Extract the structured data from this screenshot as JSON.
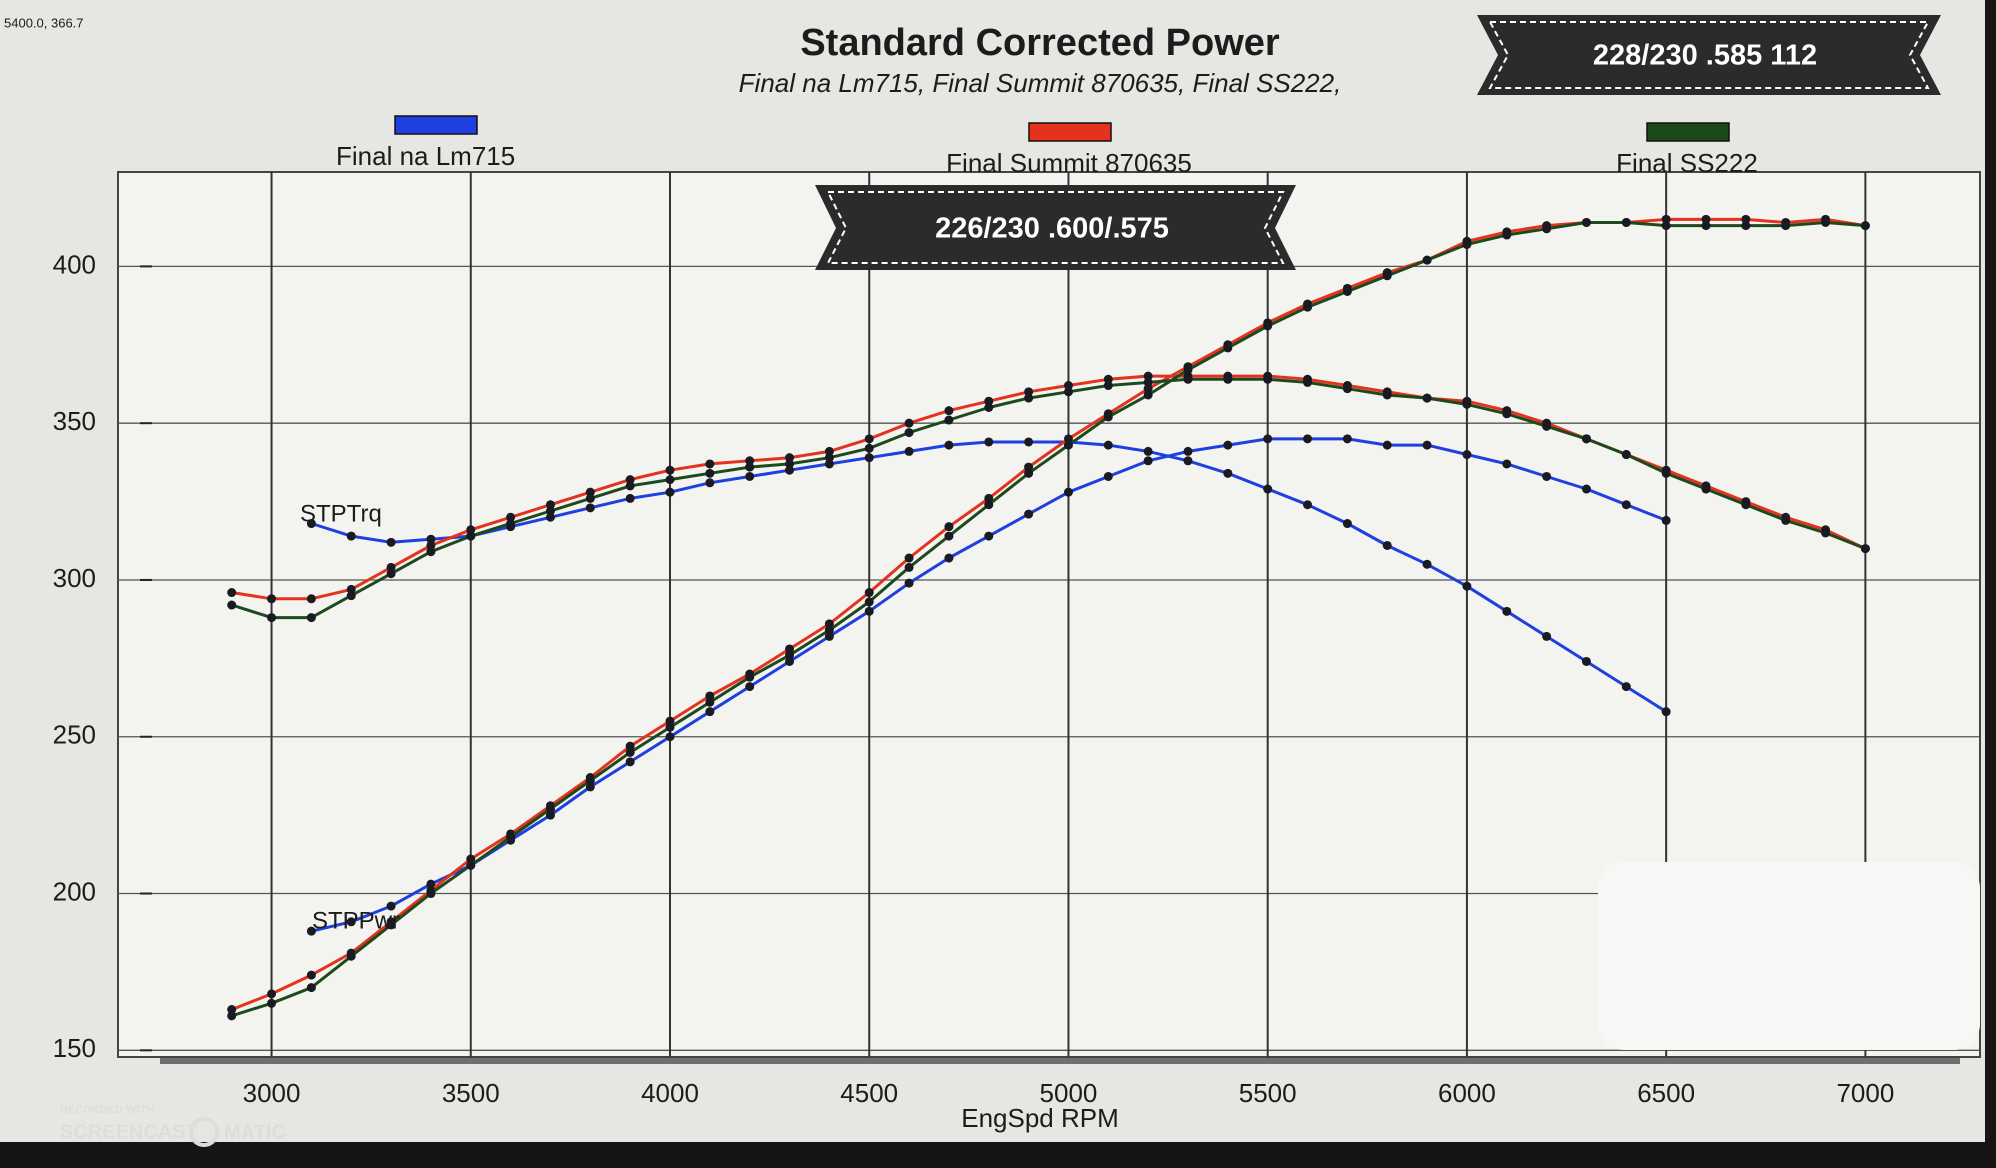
{
  "chart_data": {
    "type": "line",
    "title": "Standard Corrected Power",
    "subtitle": "Final na Lm715, Final Summit 870635, Final SS222,",
    "x_label": "EngSpd RPM",
    "cursor_readout": "5400.0, 366.7",
    "banners": [
      "228/230 .585 112",
      "226/230 .600/.575"
    ],
    "annotations": [
      "STPTrq",
      "STPPwr"
    ],
    "watermark": [
      "RECORDED WITH",
      "SCREENCAST",
      "MATIC"
    ],
    "xlim": [
      2700,
      7250
    ],
    "xticks": [
      3000,
      3500,
      4000,
      4500,
      5000,
      5500,
      6000,
      6500,
      7000
    ],
    "ylim": [
      145,
      425
    ],
    "yticks": [
      150,
      200,
      250,
      300,
      350,
      400
    ],
    "grid": true,
    "x": [
      2900,
      3000,
      3100,
      3200,
      3300,
      3400,
      3500,
      3600,
      3700,
      3800,
      3900,
      4000,
      4100,
      4200,
      4300,
      4400,
      4500,
      4600,
      4700,
      4800,
      4900,
      5000,
      5100,
      5200,
      5300,
      5400,
      5500,
      5600,
      5700,
      5800,
      5900,
      6000,
      6100,
      6200,
      6300,
      6400,
      6500,
      6600,
      6700,
      6800,
      6900,
      7000
    ],
    "series": [
      {
        "name": "Final na Lm715",
        "color": "#1f3fe0",
        "torque": [
          null,
          null,
          318,
          314,
          312,
          313,
          314,
          317,
          320,
          323,
          326,
          328,
          331,
          333,
          335,
          337,
          339,
          341,
          343,
          344,
          344,
          344,
          343,
          341,
          338,
          334,
          329,
          324,
          318,
          311,
          305,
          298,
          290,
          282,
          274,
          266,
          258,
          null,
          null,
          null,
          null,
          null
        ],
        "power": [
          null,
          null,
          188,
          191,
          196,
          203,
          209,
          217,
          225,
          234,
          242,
          250,
          258,
          266,
          274,
          282,
          290,
          299,
          307,
          314,
          321,
          328,
          333,
          338,
          341,
          343,
          345,
          345,
          345,
          343,
          343,
          340,
          337,
          333,
          329,
          324,
          319,
          null,
          null,
          null,
          null,
          null
        ]
      },
      {
        "name": "Final Summit 870635",
        "color": "#e5321e",
        "torque": [
          296,
          294,
          294,
          297,
          304,
          311,
          316,
          320,
          324,
          328,
          332,
          335,
          337,
          338,
          339,
          341,
          345,
          350,
          354,
          357,
          360,
          362,
          364,
          365,
          365,
          365,
          365,
          364,
          362,
          360,
          358,
          357,
          354,
          350,
          345,
          340,
          335,
          330,
          325,
          320,
          316,
          310
        ],
        "power": [
          163,
          168,
          174,
          181,
          191,
          201,
          211,
          219,
          228,
          237,
          247,
          255,
          263,
          270,
          278,
          286,
          296,
          307,
          317,
          326,
          336,
          345,
          353,
          361,
          368,
          375,
          382,
          388,
          393,
          398,
          402,
          408,
          411,
          413,
          414,
          414,
          415,
          415,
          415,
          414,
          415,
          413
        ]
      },
      {
        "name": "Final SS222",
        "color": "#1d4a1d",
        "torque": [
          292,
          288,
          288,
          295,
          302,
          309,
          314,
          318,
          322,
          326,
          330,
          332,
          334,
          336,
          337,
          339,
          342,
          347,
          351,
          355,
          358,
          360,
          362,
          363,
          364,
          364,
          364,
          363,
          361,
          359,
          358,
          356,
          353,
          349,
          345,
          340,
          334,
          329,
          324,
          319,
          315,
          310
        ],
        "power": [
          161,
          165,
          170,
          180,
          190,
          200,
          209,
          218,
          227,
          236,
          245,
          253,
          261,
          269,
          276,
          284,
          293,
          304,
          314,
          324,
          334,
          343,
          352,
          359,
          367,
          374,
          381,
          387,
          392,
          397,
          402,
          407,
          410,
          412,
          414,
          414,
          413,
          413,
          413,
          413,
          414,
          413
        ]
      }
    ]
  }
}
